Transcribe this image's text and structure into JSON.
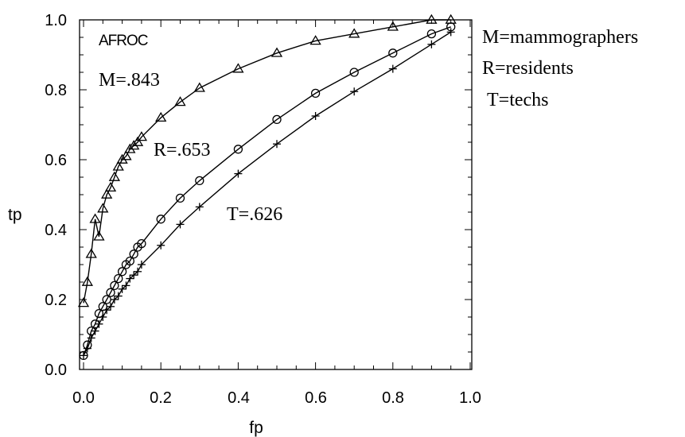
{
  "chart_data": {
    "type": "line",
    "title": "AFROC",
    "xlabel": "fp",
    "ylabel": "tp",
    "xlim": [
      0,
      1
    ],
    "ylim": [
      0,
      1
    ],
    "x_ticks": [
      "0.0",
      "0.2",
      "0.4",
      "0.6",
      "0.8",
      "1.0"
    ],
    "y_ticks": [
      "0.0",
      "0.2",
      "0.4",
      "0.6",
      "0.8",
      "1.0"
    ],
    "legend": [
      "M=mammographers",
      "R=residents",
      "T=techs"
    ],
    "legend_position": "right",
    "series": [
      {
        "label": "M=.843",
        "marker": "triangle",
        "x": [
          0.0,
          0.01,
          0.02,
          0.03,
          0.04,
          0.05,
          0.06,
          0.07,
          0.08,
          0.09,
          0.1,
          0.11,
          0.12,
          0.13,
          0.14,
          0.15,
          0.2,
          0.25,
          0.3,
          0.4,
          0.5,
          0.6,
          0.7,
          0.8,
          0.9,
          0.95
        ],
        "y": [
          0.19,
          0.25,
          0.33,
          0.43,
          0.38,
          0.46,
          0.5,
          0.52,
          0.55,
          0.58,
          0.6,
          0.61,
          0.63,
          0.64,
          0.65,
          0.665,
          0.72,
          0.765,
          0.805,
          0.86,
          0.905,
          0.94,
          0.96,
          0.98,
          1.0,
          1.0
        ]
      },
      {
        "label": "R=.653",
        "marker": "circle",
        "x": [
          0.0,
          0.01,
          0.02,
          0.03,
          0.04,
          0.05,
          0.06,
          0.07,
          0.08,
          0.09,
          0.1,
          0.11,
          0.12,
          0.13,
          0.14,
          0.15,
          0.2,
          0.25,
          0.3,
          0.4,
          0.5,
          0.6,
          0.7,
          0.8,
          0.9,
          0.95
        ],
        "y": [
          0.04,
          0.07,
          0.11,
          0.13,
          0.16,
          0.18,
          0.2,
          0.22,
          0.24,
          0.26,
          0.28,
          0.3,
          0.31,
          0.33,
          0.35,
          0.36,
          0.43,
          0.49,
          0.54,
          0.63,
          0.715,
          0.79,
          0.85,
          0.905,
          0.96,
          0.98
        ]
      },
      {
        "label": "T=.626",
        "marker": "plus",
        "x": [
          0.0,
          0.01,
          0.02,
          0.03,
          0.04,
          0.05,
          0.06,
          0.07,
          0.08,
          0.09,
          0.1,
          0.11,
          0.12,
          0.13,
          0.14,
          0.15,
          0.2,
          0.25,
          0.3,
          0.4,
          0.5,
          0.6,
          0.7,
          0.8,
          0.9,
          0.95
        ],
        "y": [
          0.04,
          0.06,
          0.09,
          0.11,
          0.13,
          0.15,
          0.17,
          0.18,
          0.2,
          0.21,
          0.23,
          0.24,
          0.26,
          0.27,
          0.28,
          0.3,
          0.355,
          0.415,
          0.465,
          0.56,
          0.645,
          0.725,
          0.795,
          0.86,
          0.93,
          0.965
        ]
      }
    ]
  }
}
